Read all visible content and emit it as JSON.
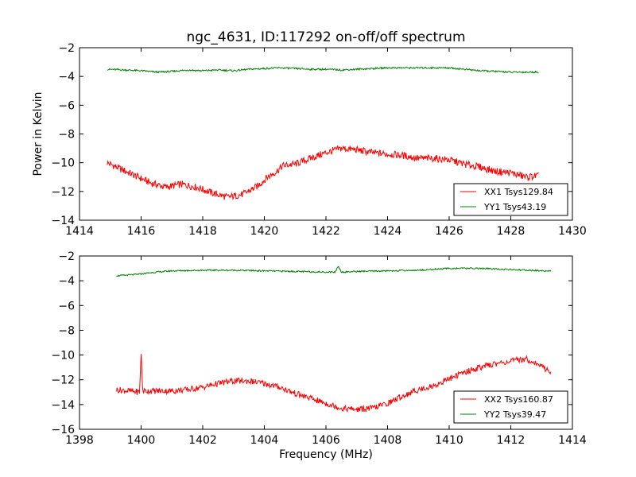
{
  "title": "ngc_4631, ID:117292 on-off/off spectrum",
  "chart_data": [
    {
      "type": "line",
      "xlim": [
        1414,
        1430
      ],
      "ylim": [
        -14,
        -2
      ],
      "xticks": [
        1414,
        1416,
        1418,
        1420,
        1422,
        1424,
        1426,
        1428,
        1430
      ],
      "yticks": [
        -2,
        -4,
        -6,
        -8,
        -10,
        -12,
        -14
      ],
      "ylabel": "Power in Kelvin",
      "xlabel": "",
      "legend_position": "lower-right",
      "series": [
        {
          "name": "XX1 Tsys129.84",
          "color": "#ff0000",
          "x": [
            1414.9,
            1415.3,
            1415.8,
            1416.3,
            1416.8,
            1417.3,
            1417.8,
            1418.3,
            1418.8,
            1419.3,
            1419.8,
            1420.1,
            1420.4,
            1420.6,
            1421.0,
            1421.5,
            1422.0,
            1422.5,
            1423.0,
            1423.5,
            1424.0,
            1424.5,
            1425.0,
            1425.5,
            1426.0,
            1426.5,
            1427.0,
            1427.5,
            1428.0,
            1428.5,
            1428.9
          ],
          "y": [
            -10.0,
            -10.4,
            -10.9,
            -11.4,
            -11.7,
            -11.5,
            -11.7,
            -12.1,
            -12.4,
            -12.2,
            -11.6,
            -11.0,
            -10.6,
            -10.2,
            -10.1,
            -9.7,
            -9.3,
            -9.0,
            -9.1,
            -9.3,
            -9.4,
            -9.5,
            -9.7,
            -9.7,
            -9.8,
            -10.1,
            -10.3,
            -10.6,
            -10.7,
            -11.0,
            -10.9
          ]
        },
        {
          "name": "YY1 Tsys43.19",
          "color": "#008000",
          "x": [
            1414.9,
            1415.5,
            1416.0,
            1416.5,
            1417.0,
            1417.5,
            1418.0,
            1418.5,
            1419.0,
            1419.5,
            1420.0,
            1420.5,
            1421.0,
            1421.5,
            1422.0,
            1422.5,
            1423.0,
            1423.5,
            1424.0,
            1424.5,
            1425.0,
            1425.5,
            1426.0,
            1426.5,
            1427.0,
            1427.5,
            1428.0,
            1428.5,
            1428.9
          ],
          "y": [
            -3.5,
            -3.55,
            -3.6,
            -3.7,
            -3.65,
            -3.55,
            -3.6,
            -3.55,
            -3.6,
            -3.5,
            -3.45,
            -3.4,
            -3.45,
            -3.5,
            -3.5,
            -3.55,
            -3.5,
            -3.45,
            -3.4,
            -3.4,
            -3.4,
            -3.4,
            -3.4,
            -3.5,
            -3.6,
            -3.65,
            -3.7,
            -3.7,
            -3.7
          ]
        }
      ]
    },
    {
      "type": "line",
      "xlim": [
        1398,
        1414
      ],
      "ylim": [
        -16,
        -2
      ],
      "xticks": [
        1398,
        1400,
        1402,
        1404,
        1406,
        1408,
        1410,
        1412,
        1414
      ],
      "yticks": [
        -2,
        -4,
        -6,
        -8,
        -10,
        -12,
        -14,
        -16
      ],
      "xlabel": "Frequency (MHz)",
      "ylabel": "",
      "legend_position": "lower-right",
      "series": [
        {
          "name": "XX2 Tsys160.87",
          "color": "#ff0000",
          "x": [
            1399.2,
            1399.6,
            1399.95,
            1400.0,
            1400.05,
            1400.5,
            1401.0,
            1401.5,
            1402.0,
            1402.5,
            1403.0,
            1403.5,
            1404.0,
            1404.5,
            1405.0,
            1405.5,
            1406.0,
            1406.5,
            1407.0,
            1407.5,
            1408.0,
            1408.5,
            1409.0,
            1409.5,
            1410.0,
            1410.5,
            1411.0,
            1411.5,
            1412.0,
            1412.5,
            1413.0,
            1413.3
          ],
          "y": [
            -12.8,
            -12.9,
            -13.0,
            -9.7,
            -12.9,
            -12.9,
            -12.9,
            -12.8,
            -12.6,
            -12.3,
            -12.1,
            -12.1,
            -12.3,
            -12.6,
            -13.1,
            -13.5,
            -13.9,
            -14.3,
            -14.4,
            -14.3,
            -13.9,
            -13.3,
            -12.8,
            -12.5,
            -11.9,
            -11.4,
            -11.0,
            -10.7,
            -10.5,
            -10.3,
            -10.9,
            -11.4
          ]
        },
        {
          "name": "YY2 Tsys39.47",
          "color": "#008000",
          "x": [
            1399.2,
            1399.8,
            1400.5,
            1401.0,
            1402.0,
            1403.0,
            1404.0,
            1405.0,
            1406.0,
            1406.3,
            1406.4,
            1406.5,
            1407.0,
            1408.0,
            1409.0,
            1410.0,
            1411.0,
            1412.0,
            1413.0,
            1413.3
          ],
          "y": [
            -3.6,
            -3.5,
            -3.3,
            -3.2,
            -3.15,
            -3.15,
            -3.2,
            -3.25,
            -3.3,
            -3.3,
            -2.8,
            -3.3,
            -3.25,
            -3.2,
            -3.15,
            -3.0,
            -3.0,
            -3.1,
            -3.2,
            -3.2
          ]
        }
      ]
    }
  ]
}
